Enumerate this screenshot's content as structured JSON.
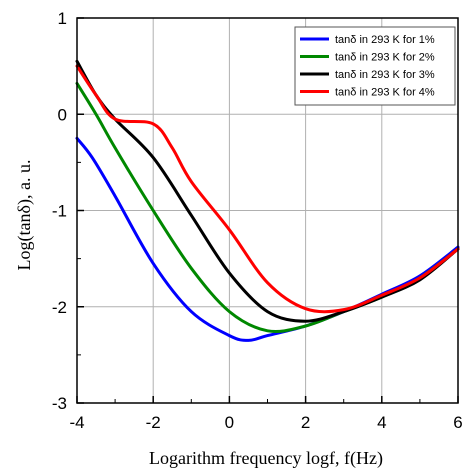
{
  "chart_data": {
    "type": "line",
    "xlabel": "Logarithm frequency logf, f(Hz)",
    "ylabel": "Log(tanδ), a. u.",
    "xlim": [
      -4,
      6
    ],
    "ylim": [
      -3,
      1
    ],
    "x_ticks": [
      -4,
      -2,
      0,
      2,
      4,
      6
    ],
    "y_ticks": [
      -3,
      -2,
      -1,
      0,
      1
    ],
    "x_tick_labels": [
      "-4",
      "-2",
      "0",
      "2",
      "4",
      "6"
    ],
    "y_tick_labels": [
      "-3",
      "-2",
      "-1",
      "0",
      "1"
    ],
    "grid": true,
    "legend_position": "top-right",
    "series": [
      {
        "name": "tanδ in 293 K for 1%",
        "color": "#0000ff",
        "points": [
          [
            -4,
            -0.25
          ],
          [
            -3.6,
            -0.45
          ],
          [
            -3,
            -0.85
          ],
          [
            -2,
            -1.55
          ],
          [
            -1,
            -2.05
          ],
          [
            0,
            -2.3
          ],
          [
            0.5,
            -2.35
          ],
          [
            1,
            -2.3
          ],
          [
            2,
            -2.2
          ],
          [
            3,
            -2.05
          ],
          [
            4,
            -1.87
          ],
          [
            5,
            -1.68
          ],
          [
            6,
            -1.38
          ]
        ]
      },
      {
        "name": "tanδ in 293 K for 2%",
        "color": "#008800",
        "points": [
          [
            -4,
            0.32
          ],
          [
            -3.5,
            0.0
          ],
          [
            -3,
            -0.35
          ],
          [
            -2,
            -1.0
          ],
          [
            -1,
            -1.6
          ],
          [
            0,
            -2.05
          ],
          [
            1,
            -2.25
          ],
          [
            2,
            -2.2
          ],
          [
            3,
            -2.05
          ],
          [
            4,
            -1.9
          ],
          [
            5,
            -1.7
          ],
          [
            6,
            -1.4
          ]
        ]
      },
      {
        "name": "tanδ in 293 K for 3%",
        "color": "#000000",
        "points": [
          [
            -4,
            0.55
          ],
          [
            -3.5,
            0.2
          ],
          [
            -3,
            -0.05
          ],
          [
            -2,
            -0.45
          ],
          [
            -1,
            -1.05
          ],
          [
            0,
            -1.65
          ],
          [
            1,
            -2.05
          ],
          [
            2,
            -2.15
          ],
          [
            3,
            -2.05
          ],
          [
            4,
            -1.9
          ],
          [
            5,
            -1.72
          ],
          [
            6,
            -1.4
          ]
        ]
      },
      {
        "name": "tanδ in 293 K for 4%",
        "color": "#ff0000",
        "points": [
          [
            -4,
            0.5
          ],
          [
            -3.5,
            0.2
          ],
          [
            -3,
            -0.05
          ],
          [
            -2,
            -0.1
          ],
          [
            -1.5,
            -0.35
          ],
          [
            -1,
            -0.7
          ],
          [
            0,
            -1.2
          ],
          [
            1,
            -1.75
          ],
          [
            2,
            -2.02
          ],
          [
            3,
            -2.03
          ],
          [
            4,
            -1.88
          ],
          [
            5,
            -1.7
          ],
          [
            6,
            -1.4
          ]
        ]
      }
    ]
  }
}
